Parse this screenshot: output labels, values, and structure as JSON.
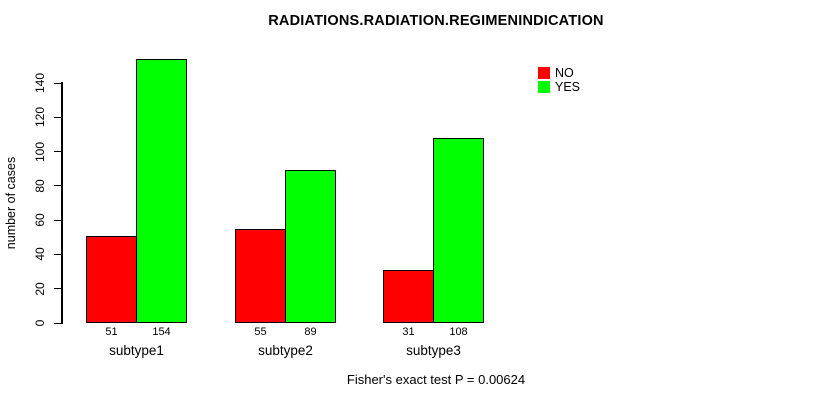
{
  "chart_data": {
    "type": "bar",
    "title": "RADIATIONS.RADIATION.REGIMENINDICATION",
    "ylabel": "number of cases",
    "xlabel": "",
    "categories": [
      "subtype1",
      "subtype2",
      "subtype3"
    ],
    "series": [
      {
        "name": "NO",
        "color": "#ff0000",
        "values": [
          51,
          55,
          31
        ]
      },
      {
        "name": "YES",
        "color": "#00ff00",
        "values": [
          154,
          89,
          108
        ]
      }
    ],
    "yticks": [
      0,
      20,
      40,
      60,
      80,
      100,
      120,
      140
    ],
    "ylim": [
      0,
      140
    ],
    "bar_value_labels": [
      [
        51,
        154
      ],
      [
        55,
        89
      ],
      [
        31,
        108
      ]
    ],
    "annotation": "Fisher's exact test P = 0.00624",
    "legend_position": "top-right",
    "grid": false,
    "background": "#ffffff",
    "text_color": "#000000"
  }
}
